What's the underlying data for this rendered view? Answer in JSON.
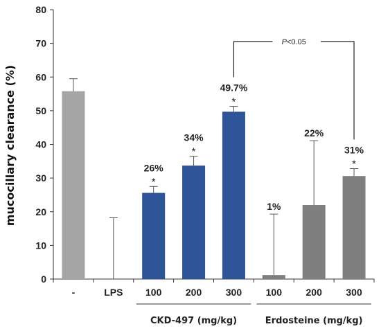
{
  "chart_data": {
    "type": "bar",
    "ylabel": "mucocillary clearance (%)",
    "ylim": [
      0,
      80
    ],
    "yticks": [
      0,
      10,
      20,
      30,
      40,
      50,
      60,
      70,
      80
    ],
    "categories": [
      "-",
      "LPS",
      "100",
      "200",
      "300",
      "100",
      "200",
      "300"
    ],
    "values": [
      55.8,
      0,
      25.6,
      33.7,
      49.7,
      1.2,
      22.0,
      30.6
    ],
    "error_upper": [
      59.5,
      18.2,
      27.5,
      36.5,
      51.3,
      19.3,
      41.1,
      32.8
    ],
    "data_labels": [
      "",
      "",
      "26%",
      "34%",
      "49.7%",
      "1%",
      "22%",
      "31%"
    ],
    "significance": [
      "",
      "",
      "*",
      "*",
      "*",
      "",
      "",
      "*"
    ],
    "colors": [
      "#a6a6a6",
      "#a6a6a6",
      "#2e5597",
      "#2e5597",
      "#2e5597",
      "#7f7f7f",
      "#7f7f7f",
      "#7f7f7f"
    ],
    "groups": [
      {
        "label": "CKD-497 (mg/kg)",
        "from": 2,
        "to": 4
      },
      {
        "label": "Erdosteine  (mg/kg)",
        "from": 5,
        "to": 7
      }
    ],
    "comparison": {
      "from": 4,
      "to": 7,
      "label_prefix": "P",
      "label_suffix": "<0.05"
    },
    "grid": false
  }
}
